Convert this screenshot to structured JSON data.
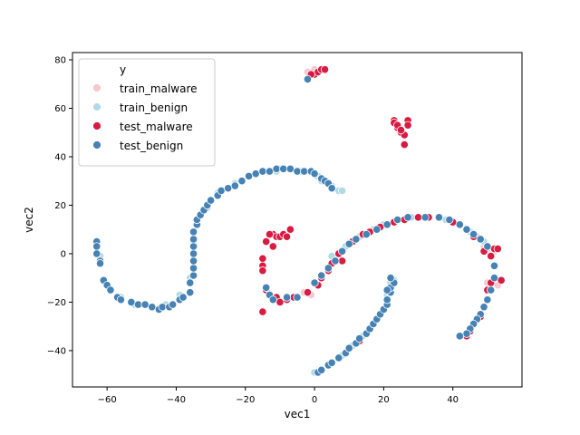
{
  "chart_data": {
    "type": "scatter",
    "title": "",
    "xlabel": "vec1",
    "ylabel": "vec2",
    "xlim": [
      -70,
      60
    ],
    "ylim": [
      -55,
      83
    ],
    "xticks": [
      -60,
      -40,
      -20,
      0,
      20,
      40
    ],
    "yticks": [
      -40,
      -20,
      0,
      20,
      40,
      60,
      80
    ],
    "grid": false,
    "legend": {
      "title": "y",
      "placement": "top-left",
      "entries": [
        {
          "label": "train_malware",
          "color": "#f7c6ce"
        },
        {
          "label": "train_benign",
          "color": "#b0dbe6"
        },
        {
          "label": "test_malware",
          "color": "#d91a41"
        },
        {
          "label": "test_benign",
          "color": "#4682b4"
        }
      ]
    },
    "series": [
      {
        "name": "train_malware",
        "color": "#f7c6ce",
        "points": [
          [
            -2,
            75
          ],
          [
            0,
            76
          ],
          [
            -1,
            -17
          ],
          [
            -3,
            -16
          ],
          [
            -15,
            -5
          ],
          [
            47,
            7
          ],
          [
            49,
            3
          ],
          [
            51,
            2
          ],
          [
            52,
            1
          ],
          [
            53,
            -13
          ],
          [
            50,
            -12
          ]
        ]
      },
      {
        "name": "train_benign",
        "color": "#b0dbe6",
        "points": [
          [
            -63,
            4
          ],
          [
            -62,
            -1
          ],
          [
            -60,
            -13
          ],
          [
            -56,
            -18
          ],
          [
            -52,
            -21
          ],
          [
            -47,
            -22
          ],
          [
            -43,
            -21
          ],
          [
            -39,
            -17
          ],
          [
            -36,
            -10
          ],
          [
            -35,
            -3
          ],
          [
            -35,
            5
          ],
          [
            -34,
            12
          ],
          [
            -31,
            19
          ],
          [
            -28,
            25
          ],
          [
            -23,
            29
          ],
          [
            -17,
            33
          ],
          [
            -10,
            35
          ],
          [
            -4,
            34
          ],
          [
            1,
            32
          ],
          [
            5,
            28
          ],
          [
            7,
            26
          ],
          [
            8,
            26
          ],
          [
            0,
            -49
          ],
          [
            4,
            -46
          ],
          [
            8,
            -42
          ],
          [
            11,
            -38
          ],
          [
            14,
            -34
          ],
          [
            16,
            -31
          ],
          [
            18,
            -27
          ],
          [
            20,
            -23
          ],
          [
            21,
            -17
          ],
          [
            22,
            -12
          ],
          [
            23,
            -11
          ],
          [
            5,
            -1
          ],
          [
            9,
            3
          ],
          [
            13,
            7
          ],
          [
            17,
            10
          ],
          [
            20,
            12
          ],
          [
            24,
            14
          ],
          [
            28,
            15
          ],
          [
            33,
            15
          ],
          [
            38,
            14
          ],
          [
            42,
            12
          ],
          [
            45,
            9
          ],
          [
            49,
            5
          ],
          [
            -11,
            34
          ],
          [
            2,
            30
          ]
        ]
      },
      {
        "name": "test_malware",
        "color": "#d91a41",
        "points": [
          [
            0,
            74
          ],
          [
            1,
            75
          ],
          [
            2,
            76
          ],
          [
            3,
            76
          ],
          [
            -1,
            74
          ],
          [
            23,
            55
          ],
          [
            23,
            54
          ],
          [
            24,
            52
          ],
          [
            25,
            50
          ],
          [
            26,
            49
          ],
          [
            27,
            55
          ],
          [
            27,
            53
          ],
          [
            26,
            45
          ],
          [
            24,
            53
          ],
          [
            25,
            51
          ],
          [
            -12,
            8
          ],
          [
            -11,
            7
          ],
          [
            -10,
            7
          ],
          [
            -9,
            8
          ],
          [
            -8,
            7
          ],
          [
            -14,
            5
          ],
          [
            -12,
            3
          ],
          [
            -7,
            10
          ],
          [
            -13,
            8
          ],
          [
            -15,
            -2
          ],
          [
            -15,
            -5
          ],
          [
            -15,
            -7
          ],
          [
            -14,
            -15
          ],
          [
            -13,
            -17
          ],
          [
            -11,
            -18
          ],
          [
            -8,
            -19
          ],
          [
            -5,
            -18
          ],
          [
            -2,
            -16
          ],
          [
            1,
            -13
          ],
          [
            2,
            -10
          ],
          [
            4,
            -7
          ],
          [
            5,
            -4
          ],
          [
            7,
            0
          ],
          [
            11,
            5
          ],
          [
            14,
            8
          ],
          [
            16,
            9
          ],
          [
            19,
            11
          ],
          [
            23,
            13
          ],
          [
            26,
            14
          ],
          [
            30,
            15
          ],
          [
            33,
            15
          ],
          [
            36,
            15
          ],
          [
            40,
            13
          ],
          [
            46,
            7
          ],
          [
            49,
            1
          ],
          [
            51,
            -1
          ],
          [
            52,
            2
          ],
          [
            53,
            2
          ],
          [
            54,
            -11
          ],
          [
            51,
            -12
          ],
          [
            50,
            -15
          ],
          [
            49,
            -22
          ],
          [
            48,
            -26
          ],
          [
            46,
            -29
          ],
          [
            45,
            -32
          ],
          [
            44,
            -34
          ],
          [
            42,
            -34
          ],
          [
            -15,
            -24
          ],
          [
            -10,
            -20
          ],
          [
            13,
            -36
          ],
          [
            -6,
            -18
          ],
          [
            8,
            -3
          ],
          [
            44,
            -33
          ]
        ]
      },
      {
        "name": "test_benign",
        "color": "#4682b4",
        "points": [
          [
            -63,
            5
          ],
          [
            -63,
            3
          ],
          [
            -63,
            0
          ],
          [
            -62,
            -3
          ],
          [
            -62,
            -4
          ],
          [
            -61,
            -11
          ],
          [
            -60,
            -13
          ],
          [
            -59,
            -15
          ],
          [
            -57,
            -18
          ],
          [
            -56,
            -19
          ],
          [
            -53,
            -20
          ],
          [
            -51,
            -21
          ],
          [
            -49,
            -21
          ],
          [
            -47,
            -22
          ],
          [
            -45,
            -23
          ],
          [
            -44,
            -22
          ],
          [
            -42,
            -22
          ],
          [
            -41,
            -21
          ],
          [
            -39,
            -19
          ],
          [
            -38,
            -18
          ],
          [
            -36,
            -16
          ],
          [
            -36,
            -12
          ],
          [
            -35,
            -9
          ],
          [
            -35,
            -6
          ],
          [
            -35,
            -3
          ],
          [
            -35,
            0
          ],
          [
            -35,
            3
          ],
          [
            -35,
            6
          ],
          [
            -35,
            9
          ],
          [
            -34,
            12
          ],
          [
            -34,
            14
          ],
          [
            -33,
            16
          ],
          [
            -32,
            18
          ],
          [
            -31,
            20
          ],
          [
            -30,
            22
          ],
          [
            -28,
            24
          ],
          [
            -27,
            26
          ],
          [
            -25,
            27
          ],
          [
            -23,
            28
          ],
          [
            -21,
            30
          ],
          [
            -19,
            32
          ],
          [
            -17,
            33
          ],
          [
            -15,
            34
          ],
          [
            -13,
            34
          ],
          [
            -11,
            35
          ],
          [
            -9,
            35
          ],
          [
            -7,
            35
          ],
          [
            -5,
            34
          ],
          [
            -3,
            34
          ],
          [
            -1,
            34
          ],
          [
            0,
            33
          ],
          [
            2,
            31
          ],
          [
            3,
            30
          ],
          [
            4,
            29
          ],
          [
            5,
            27
          ],
          [
            -2,
            72
          ],
          [
            1,
            -49
          ],
          [
            2,
            -48
          ],
          [
            4,
            -46
          ],
          [
            5,
            -45
          ],
          [
            7,
            -43
          ],
          [
            9,
            -41
          ],
          [
            10,
            -39
          ],
          [
            12,
            -37
          ],
          [
            13,
            -35
          ],
          [
            15,
            -33
          ],
          [
            16,
            -31
          ],
          [
            17,
            -29
          ],
          [
            18,
            -27
          ],
          [
            19,
            -25
          ],
          [
            20,
            -23
          ],
          [
            21,
            -21
          ],
          [
            21,
            -19
          ],
          [
            22,
            -16
          ],
          [
            22,
            -14
          ],
          [
            23,
            -12
          ],
          [
            22,
            -10
          ],
          [
            21,
            -15
          ],
          [
            -14,
            -14
          ],
          [
            -13,
            -17
          ],
          [
            -12,
            -19
          ],
          [
            -8,
            -18
          ],
          [
            -5,
            -18
          ],
          [
            0,
            -12
          ],
          [
            2,
            -9
          ],
          [
            4,
            -6
          ],
          [
            6,
            -3
          ],
          [
            8,
            1
          ],
          [
            10,
            4
          ],
          [
            12,
            6
          ],
          [
            15,
            8
          ],
          [
            18,
            10
          ],
          [
            21,
            12
          ],
          [
            24,
            14
          ],
          [
            27,
            15
          ],
          [
            32,
            15
          ],
          [
            36,
            15
          ],
          [
            39,
            14
          ],
          [
            42,
            12
          ],
          [
            44,
            10
          ],
          [
            46,
            8
          ],
          [
            48,
            6
          ],
          [
            50,
            3
          ],
          [
            52,
            -5
          ],
          [
            52,
            -10
          ],
          [
            51,
            -15
          ],
          [
            50,
            -19
          ],
          [
            49,
            -22
          ],
          [
            48,
            -25
          ],
          [
            47,
            -27
          ],
          [
            46,
            -29
          ],
          [
            45,
            -31
          ],
          [
            44,
            -33
          ],
          [
            42,
            -34
          ]
        ]
      }
    ]
  }
}
